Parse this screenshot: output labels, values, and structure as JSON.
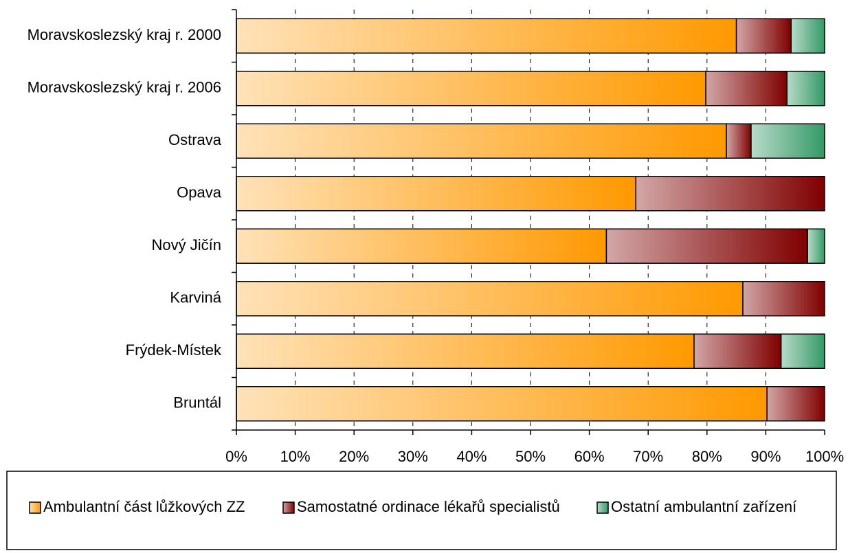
{
  "chart_data": {
    "type": "stacked-bar-horizontal",
    "categories": [
      "Moravskoslezský kraj r. 2000",
      "Moravskoslezský kraj r. 2006",
      "Ostrava",
      "Opava",
      "Nový Jičín",
      "Karviná",
      "Frýdek-Místek",
      "Bruntál"
    ],
    "series": [
      {
        "name": "Ambulantní část lůžkových ZZ",
        "color": "#ff9900",
        "values": [
          85.0,
          79.8,
          83.3,
          67.9,
          62.9,
          86.1,
          77.8,
          90.2
        ]
      },
      {
        "name": "Samostatné ordinace lékařů specialistů",
        "color": "#800000",
        "values": [
          9.3,
          13.8,
          4.2,
          32.1,
          34.2,
          13.9,
          14.8,
          9.8
        ]
      },
      {
        "name": "Ostatní ambulantní zařízení",
        "color": "#339966",
        "values": [
          5.7,
          6.4,
          12.5,
          0,
          2.9,
          0,
          7.4,
          0
        ]
      }
    ],
    "xlim": [
      0,
      100
    ],
    "xticks": [
      {
        "value": 0,
        "label": "0%"
      },
      {
        "value": 10,
        "label": "10%"
      },
      {
        "value": 20,
        "label": "20%"
      },
      {
        "value": 30,
        "label": "30%"
      },
      {
        "value": 40,
        "label": "40%"
      },
      {
        "value": 50,
        "label": "50%"
      },
      {
        "value": 60,
        "label": "60%"
      },
      {
        "value": 70,
        "label": "70%"
      },
      {
        "value": 80,
        "label": "80%"
      },
      {
        "value": 90,
        "label": "90%"
      },
      {
        "value": 100,
        "label": "100%"
      }
    ],
    "grid": true,
    "legend": "bottom"
  }
}
